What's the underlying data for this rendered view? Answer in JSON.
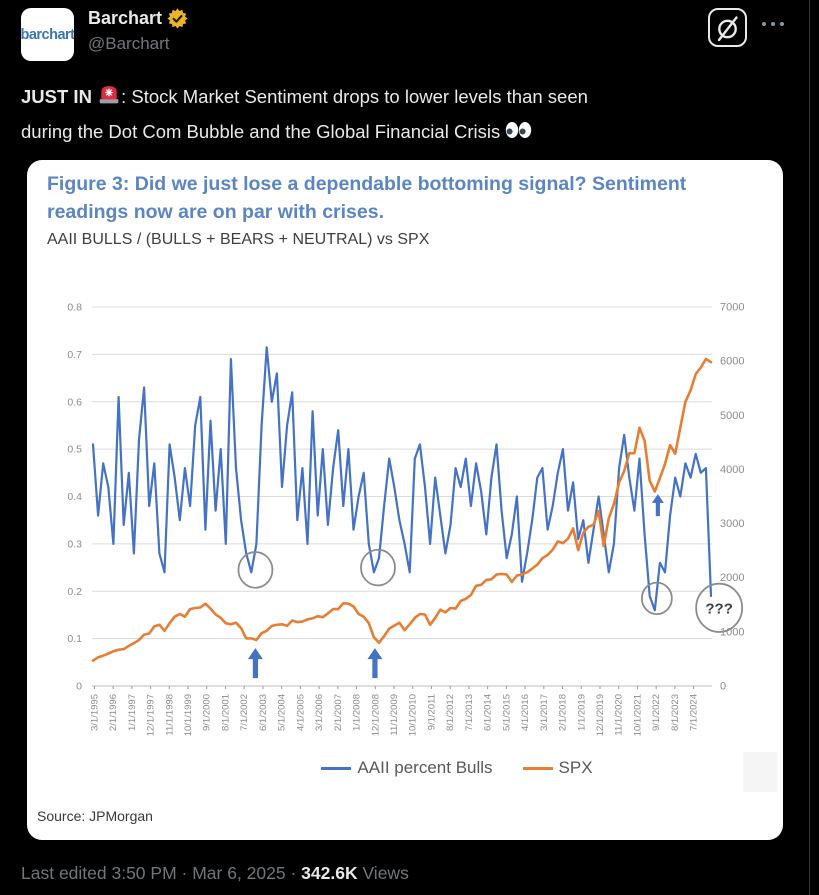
{
  "header": {
    "avatar_text": "barchart",
    "display_name": "Barchart",
    "handle": "@Barchart",
    "badge_color": "#e9b32a",
    "icons": [
      "gold-verified-badge-icon",
      "grok-icon",
      "more-options-icon"
    ]
  },
  "tweet": {
    "segments": [
      {
        "text": "JUST IN ",
        "bold": true
      },
      {
        "icon": "siren-icon"
      },
      {
        "text": ": Stock Market Sentiment drops to lower levels than seen"
      },
      {
        "br": true
      },
      {
        "text": "during the Dot Com Bubble and the Global Financial Crisis "
      },
      {
        "icon": "eyes-icon"
      }
    ]
  },
  "footer": {
    "meta": "Last edited 3:50 PM · Mar 6, 2025 · ",
    "views_count": "342.6K",
    "views_label": " Views"
  },
  "chart_data": {
    "type": "line",
    "title": "Figure 3: Did we just lose a dependable bottoming signal? Sentiment readings now are on par with crises.",
    "subtitle": "AAII BULLS / (BULLS + BEARS + NEUTRAL) vs SPX",
    "source": "Source: JPMorgan",
    "grid": true,
    "legend_position": "bottom",
    "colors": {
      "bulls": "#4472c4",
      "spx": "#e67e33",
      "grid": "#dcdcdc",
      "axis_text": "#8c8c8c",
      "annotation": "#8c8c8c"
    },
    "left_axis": {
      "min": 0,
      "max": 0.8,
      "ticks": [
        "0.8",
        "0.7",
        "0.6",
        "0.5",
        "0.4",
        "0.3",
        "0.2",
        "0.1",
        "0"
      ]
    },
    "right_axis": {
      "min": 0,
      "max": 7000,
      "ticks": [
        "7000",
        "6000",
        "5000",
        "4000",
        "3000",
        "2000",
        "1000",
        "0"
      ]
    },
    "x_range": [
      1995.05,
      2025.4
    ],
    "x_tick_start": 1995.167,
    "x_tick_step_years": 0.916667,
    "x_tick_labels": [
      "3/1/1995",
      "2/1/1996",
      "1/1/1997",
      "12/1/1997",
      "11/1/1998",
      "10/1/1999",
      "9/1/2000",
      "8/1/2001",
      "7/1/2002",
      "6/1/2003",
      "5/1/2004",
      "4/1/2005",
      "3/1/2006",
      "2/1/2007",
      "1/1/2008",
      "12/1/2008",
      "11/1/2009",
      "10/1/2010",
      "9/1/2011",
      "8/1/2012",
      "7/1/2013",
      "6/1/2014",
      "5/1/2015",
      "4/1/2016",
      "3/1/2017",
      "2/1/2018",
      "1/1/2019",
      "12/1/2019",
      "11/1/2020",
      "10/1/2021",
      "9/1/2022",
      "8/1/2023",
      "7/1/2024"
    ],
    "series": [
      {
        "name": "AAII percent Bulls",
        "axis": "left",
        "color": "#4472c4",
        "width": 2.2,
        "x_start": 1995.1,
        "x_step": 0.25,
        "values": [
          0.51,
          0.36,
          0.47,
          0.42,
          0.3,
          0.61,
          0.34,
          0.45,
          0.28,
          0.52,
          0.63,
          0.38,
          0.47,
          0.28,
          0.24,
          0.51,
          0.44,
          0.35,
          0.46,
          0.38,
          0.55,
          0.61,
          0.33,
          0.56,
          0.37,
          0.5,
          0.3,
          0.69,
          0.46,
          0.35,
          0.28,
          0.24,
          0.3,
          0.55,
          0.715,
          0.6,
          0.66,
          0.42,
          0.55,
          0.62,
          0.35,
          0.46,
          0.3,
          0.58,
          0.36,
          0.5,
          0.34,
          0.46,
          0.54,
          0.38,
          0.5,
          0.33,
          0.4,
          0.45,
          0.3,
          0.24,
          0.27,
          0.38,
          0.48,
          0.42,
          0.35,
          0.3,
          0.24,
          0.48,
          0.51,
          0.42,
          0.3,
          0.44,
          0.36,
          0.28,
          0.34,
          0.46,
          0.42,
          0.48,
          0.38,
          0.47,
          0.41,
          0.32,
          0.44,
          0.51,
          0.37,
          0.27,
          0.32,
          0.4,
          0.22,
          0.28,
          0.35,
          0.44,
          0.46,
          0.33,
          0.38,
          0.45,
          0.5,
          0.37,
          0.43,
          0.31,
          0.35,
          0.26,
          0.33,
          0.4,
          0.32,
          0.24,
          0.3,
          0.46,
          0.53,
          0.44,
          0.37,
          0.48,
          0.32,
          0.19,
          0.16,
          0.26,
          0.24,
          0.36,
          0.44,
          0.4,
          0.47,
          0.44,
          0.49,
          0.45,
          0.46,
          0.19
        ]
      },
      {
        "name": "SPX",
        "axis": "right",
        "color": "#e67e33",
        "width": 2.6,
        "x_start": 1995.1,
        "x_step": 0.25,
        "values": [
          470,
          530,
          560,
          600,
          640,
          670,
          680,
          740,
          790,
          850,
          950,
          970,
          1100,
          1130,
          1020,
          1160,
          1280,
          1330,
          1280,
          1420,
          1440,
          1450,
          1520,
          1430,
          1320,
          1260,
          1160,
          1140,
          1170,
          1070,
          880,
          880,
          850,
          975,
          1020,
          1110,
          1130,
          1140,
          1110,
          1210,
          1180,
          1190,
          1230,
          1250,
          1290,
          1270,
          1340,
          1420,
          1420,
          1530,
          1520,
          1470,
          1330,
          1280,
          1160,
          900,
          800,
          920,
          1060,
          1115,
          1170,
          1030,
          1140,
          1260,
          1330,
          1320,
          1130,
          1260,
          1410,
          1360,
          1440,
          1430,
          1570,
          1610,
          1680,
          1850,
          1870,
          1960,
          1970,
          2060,
          2070,
          2060,
          1920,
          2040,
          2060,
          2100,
          2170,
          2240,
          2360,
          2420,
          2520,
          2670,
          2640,
          2720,
          2910,
          2510,
          2830,
          2940,
          2980,
          3230,
          2585,
          3100,
          3360,
          3760,
          3970,
          4300,
          4300,
          4770,
          4530,
          3790,
          3590,
          3840,
          4100,
          4450,
          4290,
          4770,
          5250,
          5460,
          5760,
          5880,
          6040,
          5980
        ]
      }
    ],
    "annotations": {
      "circles": [
        {
          "x": 2003.05,
          "v": 0.245,
          "r": 17
        },
        {
          "x": 2009.05,
          "v": 0.25,
          "r": 17
        },
        {
          "x": 2022.7,
          "v": 0.185,
          "r": 15
        },
        {
          "x": 2025.75,
          "v": 0.165,
          "r": 23,
          "label": "???"
        }
      ],
      "arrows": [
        {
          "x": 2003.05,
          "tip_v": 0.08,
          "length": 30,
          "size": 1
        },
        {
          "x": 2008.9,
          "tip_v": 0.08,
          "length": 30,
          "size": 1
        },
        {
          "x": 2022.75,
          "tip_v": 0.405,
          "length": 22,
          "size": 0.8
        }
      ]
    }
  }
}
